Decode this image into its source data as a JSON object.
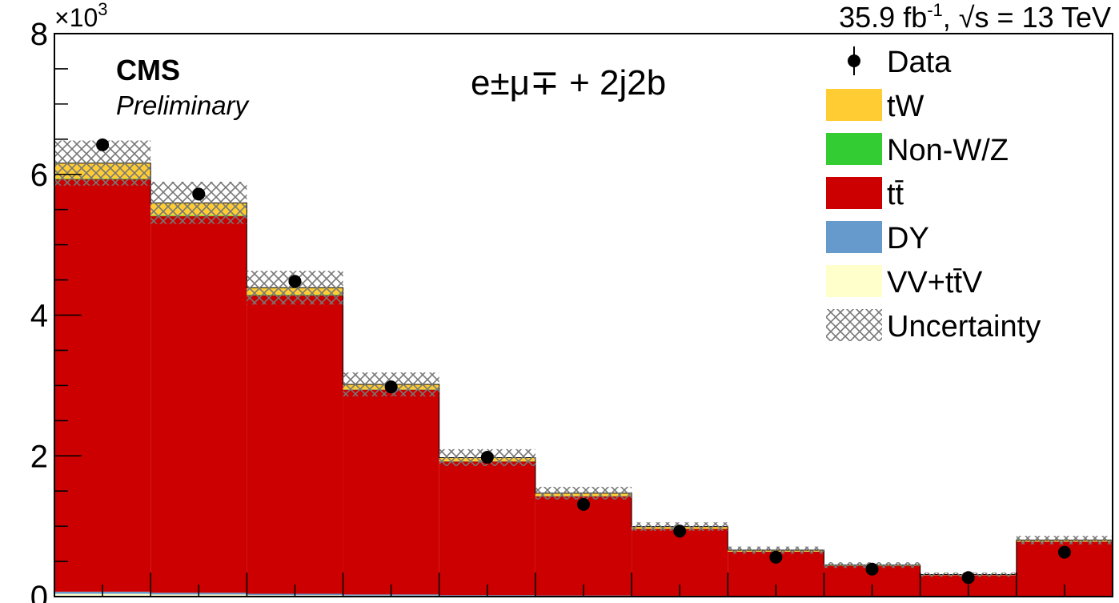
{
  "chart_data": {
    "type": "bar",
    "subtype": "stacked-histogram",
    "exponent_label": "×10",
    "exponent_power": "3",
    "lumi_label": "35.9 fb",
    "lumi_superscript": "-1",
    "energy_label": ", √s = 13 TeV",
    "experiment": "CMS",
    "status": "Preliminary",
    "channel_label": "e±μ∓ + 2j2b",
    "ylim": [
      0,
      8
    ],
    "yticks": [
      "0",
      "2",
      "4",
      "6",
      "8"
    ],
    "bins": 11,
    "series": [
      {
        "name": "VV+tt̄V",
        "color": "#ffffcc",
        "values": [
          0.04,
          0.03,
          0.02,
          0.015,
          0.01,
          0.008,
          0.006,
          0.004,
          0.003,
          0.002,
          0.005
        ]
      },
      {
        "name": "DY",
        "color": "#6699cc",
        "values": [
          0.03,
          0.025,
          0.02,
          0.015,
          0.01,
          0.008,
          0.006,
          0.004,
          0.003,
          0.002,
          0.005
        ]
      },
      {
        "name": "tt̄",
        "color": "#cc0000",
        "values": [
          5.86,
          5.35,
          4.24,
          2.91,
          1.9,
          1.41,
          0.95,
          0.63,
          0.43,
          0.3,
          0.77
        ]
      },
      {
        "name": "Non-W/Z",
        "color": "#33cc33",
        "values": [
          0.01,
          0.01,
          0.01,
          0.005,
          0.005,
          0.004,
          0.003,
          0.002,
          0.002,
          0.001,
          0.003
        ]
      },
      {
        "name": "tW",
        "color": "#ffcc33",
        "values": [
          0.22,
          0.18,
          0.1,
          0.07,
          0.05,
          0.04,
          0.03,
          0.02,
          0.01,
          0.008,
          0.02
        ]
      }
    ],
    "data": {
      "name": "Data",
      "values": [
        6.42,
        5.72,
        4.48,
        2.98,
        1.98,
        1.31,
        0.93,
        0.56,
        0.39,
        0.27,
        0.63
      ]
    },
    "uncertainty": {
      "name": "Uncertainty",
      "values": [
        0.32,
        0.3,
        0.24,
        0.17,
        0.12,
        0.09,
        0.06,
        0.05,
        0.04,
        0.03,
        0.06
      ]
    },
    "legend": [
      {
        "label": "Data",
        "kind": "marker"
      },
      {
        "label": "tW",
        "kind": "fill",
        "color": "#ffcc33"
      },
      {
        "label": "Non-W/Z",
        "kind": "fill",
        "color": "#33cc33"
      },
      {
        "label": "tt̄",
        "kind": "fill",
        "color": "#cc0000"
      },
      {
        "label": "DY",
        "kind": "fill",
        "color": "#6699cc"
      },
      {
        "label": "VV+tt̄V",
        "kind": "fill",
        "color": "#ffffcc"
      },
      {
        "label": "Uncertainty",
        "kind": "hatch"
      }
    ],
    "legend_position": "top-right",
    "grid": false
  }
}
